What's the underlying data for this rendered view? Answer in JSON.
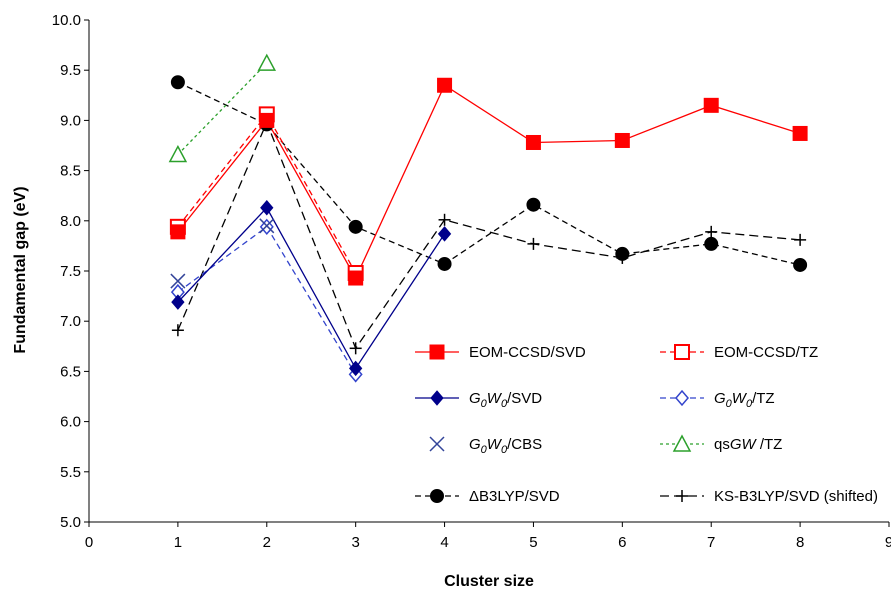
{
  "chart_data": {
    "type": "line",
    "xlabel": "Cluster size",
    "ylabel": "Fundamental gap (eV)",
    "xlim": [
      0,
      9
    ],
    "ylim": [
      5.0,
      10.0
    ],
    "xticks": [
      "0",
      "1",
      "2",
      "3",
      "4",
      "5",
      "6",
      "7",
      "8",
      "9"
    ],
    "yticks": [
      "5.0",
      "5.5",
      "6.0",
      "6.5",
      "7.0",
      "7.5",
      "8.0",
      "8.5",
      "9.0",
      "9.5",
      "10.0"
    ],
    "grid": false,
    "legend_position": "bottom-right",
    "series": [
      {
        "key": "eom_svd",
        "name": "EOM-CCSD/SVD",
        "color": "#ff0000",
        "marker": "square-filled",
        "line": "solid",
        "points": [
          [
            1,
            7.89
          ],
          [
            2,
            9.0
          ],
          [
            3,
            7.43
          ],
          [
            4,
            9.35
          ],
          [
            5,
            8.78
          ],
          [
            6,
            8.8
          ],
          [
            7,
            9.15
          ],
          [
            8,
            8.87
          ]
        ]
      },
      {
        "key": "eom_tz",
        "name": "EOM-CCSD/TZ",
        "color": "#ff0000",
        "marker": "square-open",
        "line": "dashed",
        "points": [
          [
            1,
            7.94
          ],
          [
            2,
            9.06
          ],
          [
            3,
            7.48
          ]
        ]
      },
      {
        "key": "g0w0_svd",
        "name": "/SVD",
        "gw_prefix": true,
        "color": "#00008b",
        "marker": "diamond-filled",
        "line": "solid",
        "points": [
          [
            1,
            7.19
          ],
          [
            2,
            8.13
          ],
          [
            3,
            6.53
          ],
          [
            4,
            7.87
          ]
        ]
      },
      {
        "key": "g0w0_tz",
        "name": "/TZ",
        "gw_prefix": true,
        "color": "#3344cc",
        "marker": "diamond-open",
        "line": "dashed",
        "points": [
          [
            1,
            7.29
          ],
          [
            2,
            7.94
          ],
          [
            3,
            6.47
          ]
        ]
      },
      {
        "key": "g0w0_cbs",
        "name": "/CBS",
        "gw_prefix": true,
        "color": "#334499",
        "marker": "x",
        "line": "none",
        "points": [
          [
            1,
            7.4
          ],
          [
            2,
            7.95
          ]
        ]
      },
      {
        "key": "qsgw_tz",
        "name": "qsGW /TZ",
        "color": "#2ca02c",
        "marker": "triangle-open",
        "line": "dotted",
        "points": [
          [
            1,
            8.66
          ],
          [
            2,
            9.57
          ]
        ]
      },
      {
        "key": "db3lyp_svd",
        "name": "ΔB3LYP/SVD",
        "color": "#000000",
        "marker": "circle-filled",
        "line": "dashed",
        "points": [
          [
            1,
            9.38
          ],
          [
            2,
            8.96
          ],
          [
            3,
            7.94
          ],
          [
            4,
            7.57
          ],
          [
            5,
            8.16
          ],
          [
            6,
            7.67
          ],
          [
            7,
            7.77
          ],
          [
            8,
            7.56
          ]
        ]
      },
      {
        "key": "ksb3lyp_svd",
        "name": "KS-B3LYP/SVD (shifted)",
        "color": "#000000",
        "marker": "plus",
        "line": "dashed-long",
        "points": [
          [
            1,
            6.91
          ],
          [
            2,
            8.98
          ],
          [
            3,
            6.73
          ],
          [
            4,
            8.01
          ],
          [
            5,
            7.77
          ],
          [
            6,
            7.63
          ],
          [
            7,
            7.89
          ],
          [
            8,
            7.81
          ]
        ]
      }
    ]
  }
}
